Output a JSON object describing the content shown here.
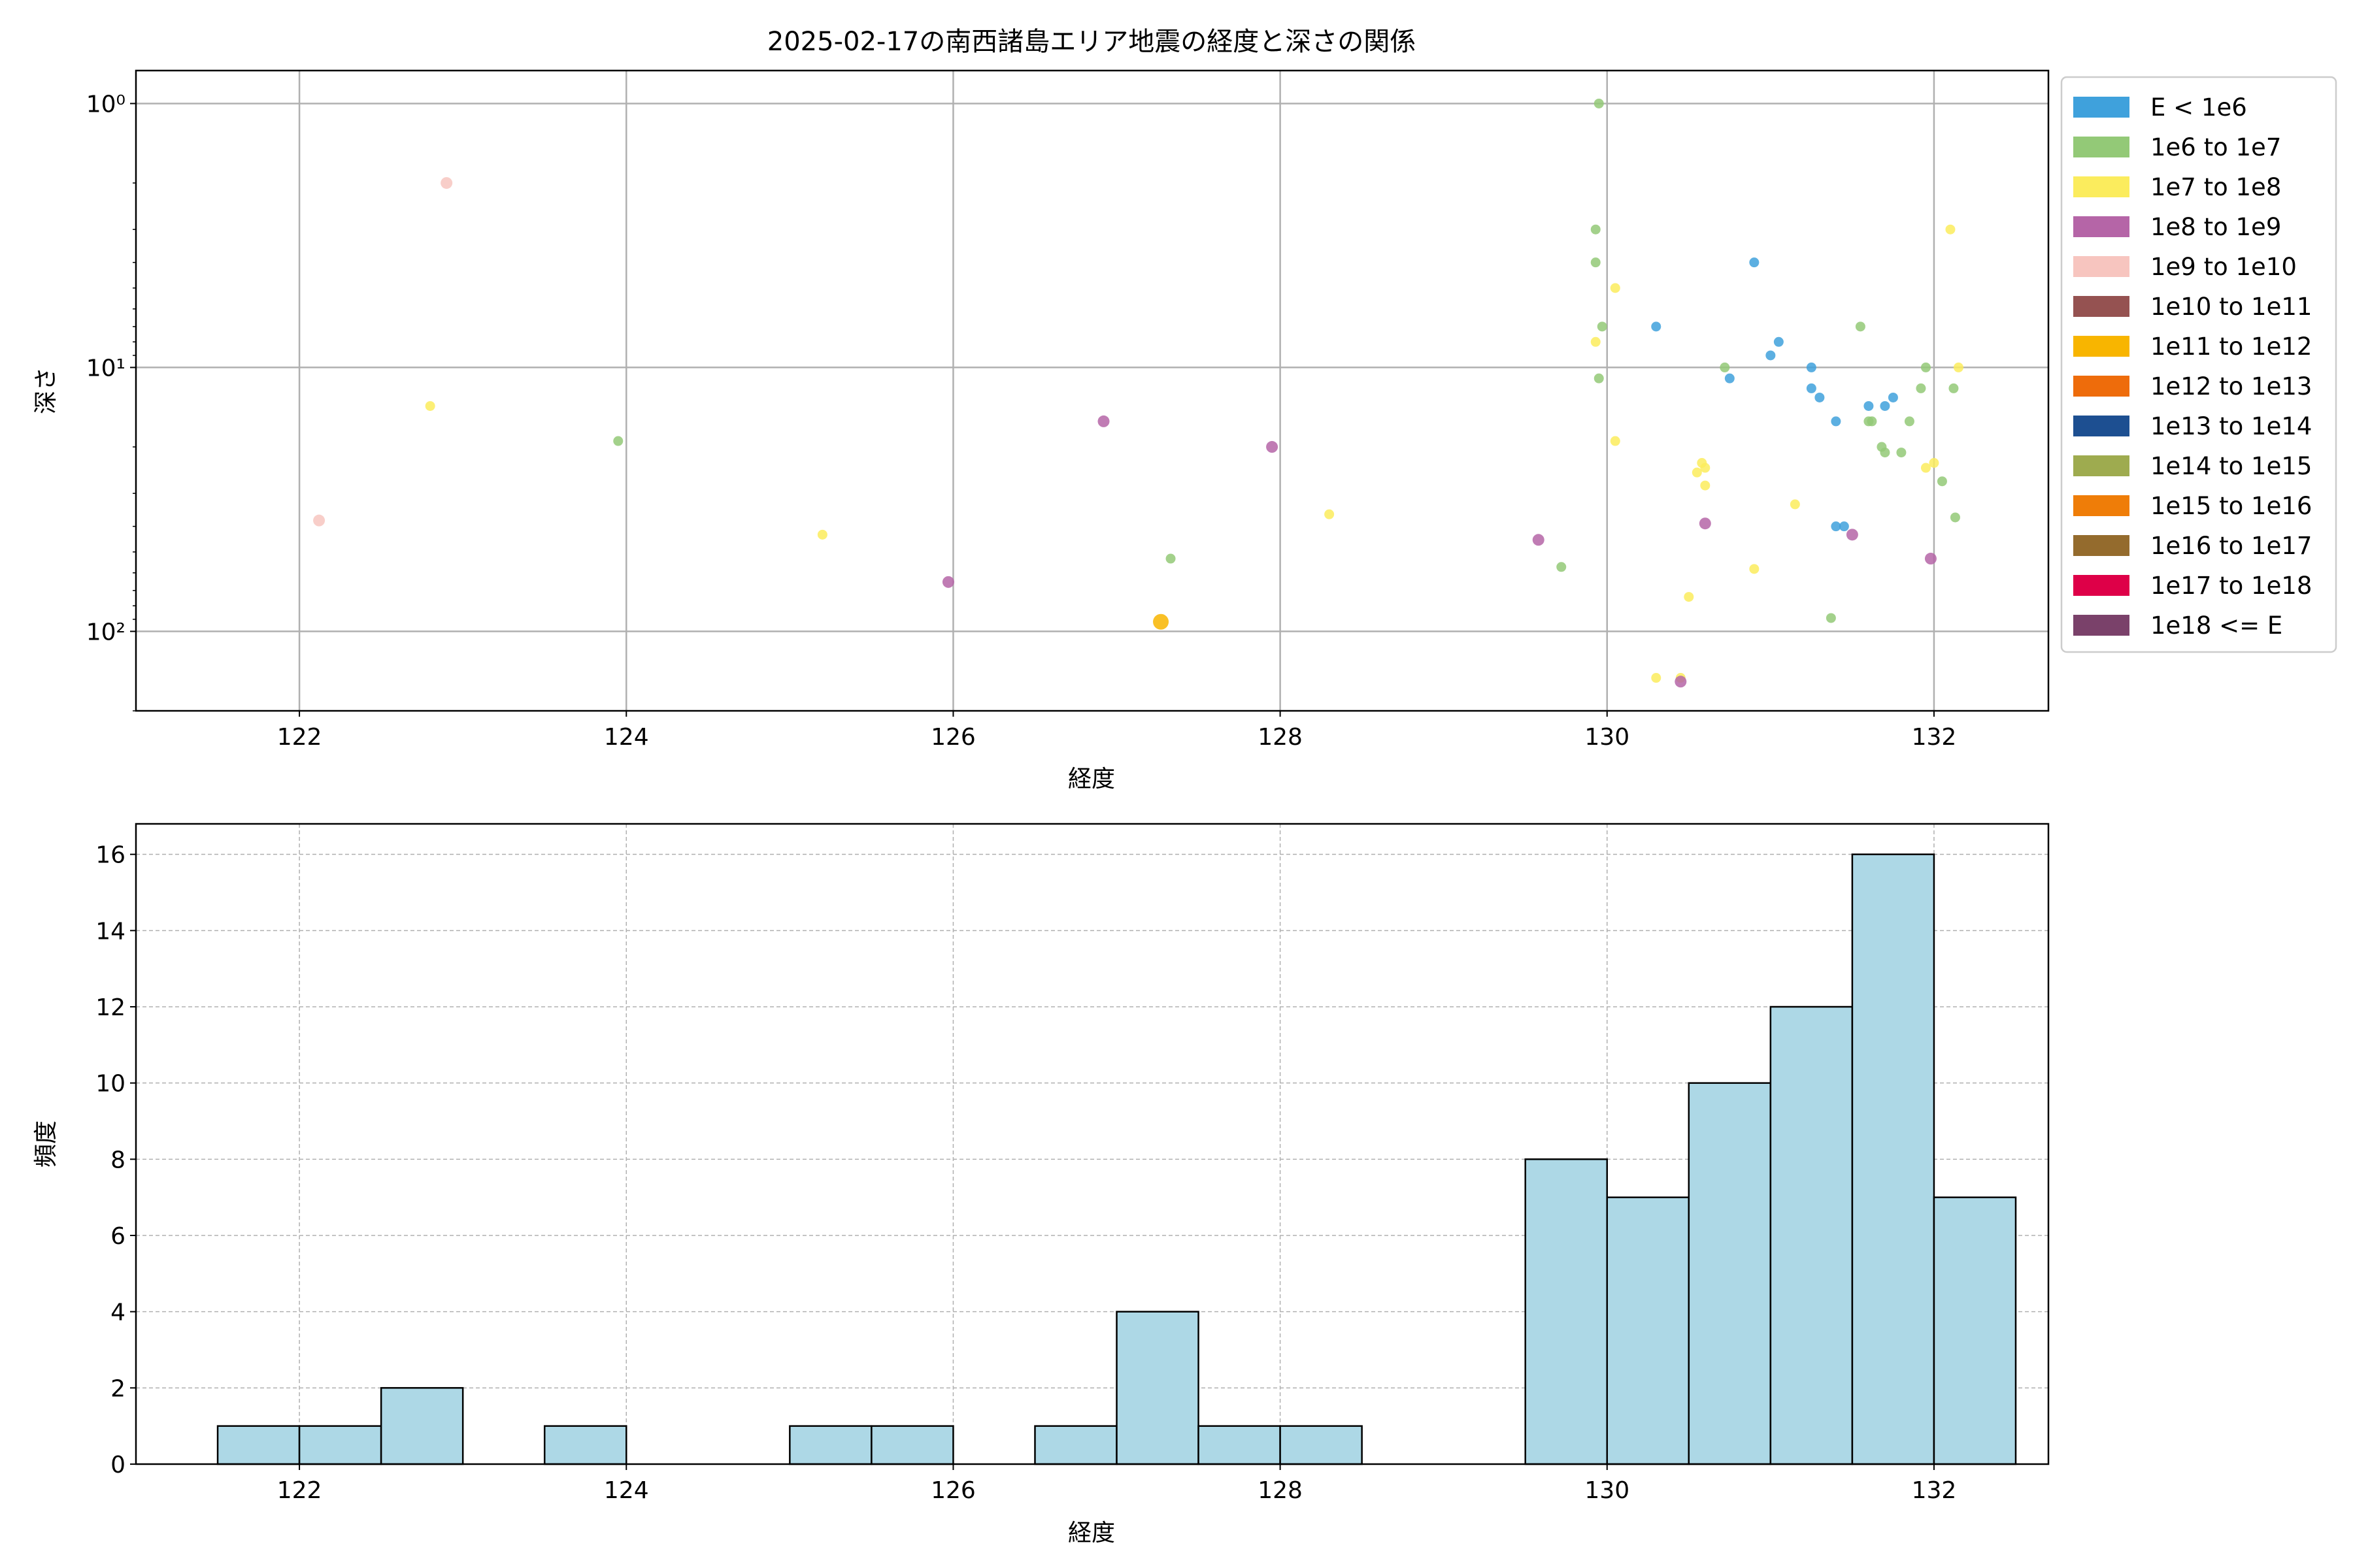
{
  "colors": {
    "E < 1e6": "#3fa1dc",
    "1e6 to 1e7": "#93c977",
    "1e7 to 1e8": "#fbec5d",
    "1e8 to 1e9": "#b565a7",
    "1e9 to 1e10": "#f7c5bf",
    "1e10 to 1e11": "#955251",
    "1e11 to 1e12": "#f8b500",
    "1e12 to 1e13": "#ee6c0b",
    "1e13 to 1e14": "#1d4f91",
    "1e14 to 1e15": "#9eab4f",
    "1e15 to 1e16": "#ef7d08",
    "1e16 to 1e17": "#946b2d",
    "1e17 to 1e18": "#de0048",
    "1e18 <= E": "#7a416a",
    "hist_fill": "#add8e6",
    "grid": "#b0b0b0"
  },
  "chart_data": [
    {
      "type": "scatter",
      "title": "2025-02-17の南西諸島エリア地震の経度と深さの関係",
      "xlabel": "経度",
      "ylabel": "深さ",
      "xlim": [
        121.0,
        132.7
      ],
      "ylim": [
        200,
        0.75
      ],
      "y_scale": "log",
      "y_inverted": true,
      "grid": true,
      "x_ticks": [
        122,
        124,
        126,
        128,
        130,
        132
      ],
      "y_ticks": [
        1,
        10,
        100
      ],
      "y_tick_labels": [
        "10⁰",
        "10¹",
        "10²"
      ],
      "legend_position": "outside-right",
      "legend": [
        "E < 1e6",
        "1e6 to 1e7",
        "1e7 to 1e8",
        "1e8 to 1e9",
        "1e9 to 1e10",
        "1e10 to 1e11",
        "1e11 to 1e12",
        "1e12 to 1e13",
        "1e13 to 1e14",
        "1e14 to 1e15",
        "1e15 to 1e16",
        "1e16 to 1e17",
        "1e17 to 1e18",
        "1e18 <= E"
      ],
      "series": [
        {
          "name": "E < 1e6",
          "points": [
            [
              130.3,
              7
            ],
            [
              130.9,
              4
            ],
            [
              131.0,
              9
            ],
            [
              131.05,
              8
            ],
            [
              130.75,
              11
            ],
            [
              131.25,
              10
            ],
            [
              131.25,
              12
            ],
            [
              131.3,
              13
            ],
            [
              131.6,
              14
            ],
            [
              131.7,
              14
            ],
            [
              131.75,
              13
            ],
            [
              131.4,
              16
            ],
            [
              131.4,
              40
            ],
            [
              131.45,
              40
            ]
          ]
        },
        {
          "name": "1e6 to 1e7",
          "points": [
            [
              129.95,
              1
            ],
            [
              129.93,
              3
            ],
            [
              129.93,
              4
            ],
            [
              129.97,
              7
            ],
            [
              129.95,
              11
            ],
            [
              130.72,
              10
            ],
            [
              131.55,
              7
            ],
            [
              131.62,
              16
            ],
            [
              131.6,
              16
            ],
            [
              131.68,
              20
            ],
            [
              131.7,
              21
            ],
            [
              131.8,
              21
            ],
            [
              131.85,
              16
            ],
            [
              131.92,
              12
            ],
            [
              131.95,
              10
            ],
            [
              132.05,
              27
            ],
            [
              132.12,
              12
            ],
            [
              132.13,
              37
            ],
            [
              131.37,
              89
            ],
            [
              129.72,
              57
            ],
            [
              127.33,
              53
            ],
            [
              123.95,
              19
            ]
          ]
        },
        {
          "name": "1e7 to 1e8",
          "points": [
            [
              130.05,
              5
            ],
            [
              129.93,
              8
            ],
            [
              130.05,
              19
            ],
            [
              130.55,
              25
            ],
            [
              130.58,
              23
            ],
            [
              130.6,
              24
            ],
            [
              130.6,
              28
            ],
            [
              131.15,
              33
            ],
            [
              130.9,
              58
            ],
            [
              130.5,
              74
            ],
            [
              130.3,
              150
            ],
            [
              130.45,
              150
            ],
            [
              131.95,
              24
            ],
            [
              132.0,
              23
            ],
            [
              132.1,
              3
            ],
            [
              132.15,
              10
            ],
            [
              122.8,
              14
            ],
            [
              125.2,
              43
            ],
            [
              128.3,
              36
            ]
          ]
        },
        {
          "name": "1e8 to 1e9",
          "points": [
            [
              126.92,
              16
            ],
            [
              127.95,
              20
            ],
            [
              129.58,
              45
            ],
            [
              130.6,
              39
            ],
            [
              131.5,
              43
            ],
            [
              131.98,
              53
            ],
            [
              125.97,
              65
            ],
            [
              130.45,
              155
            ]
          ]
        },
        {
          "name": "1e9 to 1e10",
          "points": [
            [
              122.9,
              2
            ],
            [
              122.12,
              38
            ]
          ]
        },
        {
          "name": "1e11 to 1e12",
          "points": [
            [
              127.27,
              92
            ]
          ]
        }
      ]
    },
    {
      "type": "histogram",
      "xlabel": "経度",
      "ylabel": "頻度",
      "xlim": [
        121.0,
        132.7
      ],
      "ylim": [
        0,
        16.8
      ],
      "x_ticks": [
        122,
        124,
        126,
        128,
        130,
        132
      ],
      "y_ticks": [
        0,
        2,
        4,
        6,
        8,
        10,
        12,
        14,
        16
      ],
      "grid": true,
      "bin_edges": [
        121.5,
        122.0,
        122.5,
        123.0,
        123.5,
        124.0,
        124.5,
        125.0,
        125.5,
        126.0,
        126.5,
        127.0,
        127.5,
        128.0,
        128.5,
        129.0,
        129.5,
        130.0,
        130.5,
        131.0,
        131.5,
        132.0,
        132.5
      ],
      "counts": [
        1,
        1,
        2,
        0,
        1,
        0,
        0,
        1,
        1,
        0,
        1,
        4,
        1,
        1,
        0,
        0,
        8,
        7,
        10,
        12,
        16,
        7
      ]
    }
  ]
}
